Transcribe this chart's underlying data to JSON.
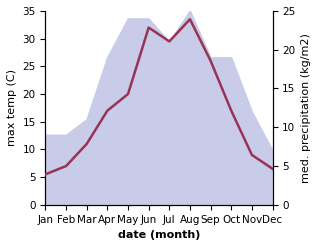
{
  "months": [
    "Jan",
    "Feb",
    "Mar",
    "Apr",
    "May",
    "Jun",
    "Jul",
    "Aug",
    "Sep",
    "Oct",
    "Nov",
    "Dec"
  ],
  "temp": [
    5.5,
    7.0,
    11.0,
    17.0,
    20.0,
    32.0,
    29.5,
    33.5,
    26.0,
    17.0,
    9.0,
    6.5
  ],
  "precip": [
    9.0,
    9.0,
    11.0,
    19.0,
    24.0,
    24.0,
    21.0,
    25.0,
    19.0,
    19.0,
    12.0,
    7.0
  ],
  "temp_color": "#993355",
  "precip_fill_color": "#c8cce8",
  "temp_ylim": [
    0,
    35
  ],
  "precip_ylim": [
    0,
    25
  ],
  "temp_yticks": [
    0,
    5,
    10,
    15,
    20,
    25,
    30,
    35
  ],
  "precip_yticks": [
    0,
    5,
    10,
    15,
    20,
    25
  ],
  "xlabel": "date (month)",
  "ylabel_left": "max temp (C)",
  "ylabel_right": "med. precipitation (kg/m2)",
  "label_fontsize": 8,
  "tick_fontsize": 7.5
}
